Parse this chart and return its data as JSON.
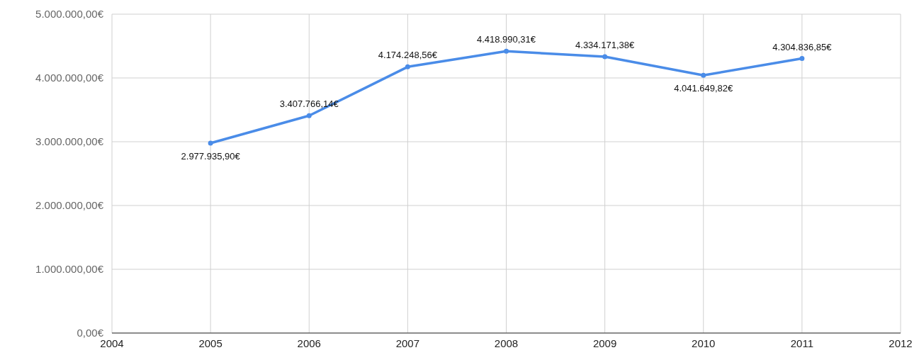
{
  "chart_data": {
    "type": "line",
    "x": [
      2005,
      2006,
      2007,
      2008,
      2009,
      2010,
      2011
    ],
    "series": [
      {
        "color": "#4a8ce8",
        "values": [
          2977935.9,
          3407766.14,
          4174248.56,
          4418990.31,
          4334171.38,
          4041649.82,
          4304836.85
        ],
        "value_labels": [
          "2.977.935,90€",
          "3.407.766,14€",
          "4.174.248,56€",
          "4.418.990,31€",
          "4.334.171,38€",
          "4.041.649,82€",
          "4.304.836,85€"
        ]
      }
    ],
    "xlim": [
      2004,
      2012
    ],
    "xticks": [
      2004,
      2005,
      2006,
      2007,
      2008,
      2009,
      2010,
      2011,
      2012
    ],
    "ylim": [
      0,
      5000000
    ],
    "yticks": [
      {
        "value": 0,
        "label": "0,00€"
      },
      {
        "value": 1000000,
        "label": "1.000.000,00€"
      },
      {
        "value": 2000000,
        "label": "2.000.000,00€"
      },
      {
        "value": 3000000,
        "label": "3.000.000,00€"
      },
      {
        "value": 4000000,
        "label": "4.000.000,00€"
      },
      {
        "value": 5000000,
        "label": "5.000.000,00€"
      }
    ],
    "grid": true,
    "marker": "circle",
    "line_style": "solid"
  }
}
